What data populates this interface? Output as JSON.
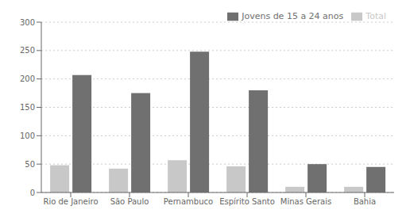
{
  "chart_data": {
    "type": "bar",
    "categories": [
      "Rio de Janeiro",
      "São Paulo",
      "Pernambuco",
      "Espírito Santo",
      "Minas Gerais",
      "Bahia"
    ],
    "series": [
      {
        "name": "Total",
        "color": "#c8c8c8",
        "values": [
          48,
          42,
          57,
          46,
          10,
          10
        ]
      },
      {
        "name": "Jovens de 15 a 24 anos",
        "color": "#707070",
        "values": [
          207,
          175,
          248,
          180,
          50,
          45
        ]
      }
    ],
    "ylim": [
      0,
      300
    ],
    "yticks": [
      0,
      50,
      100,
      150,
      200,
      250,
      300
    ],
    "grid": true,
    "legend": "upper right"
  }
}
